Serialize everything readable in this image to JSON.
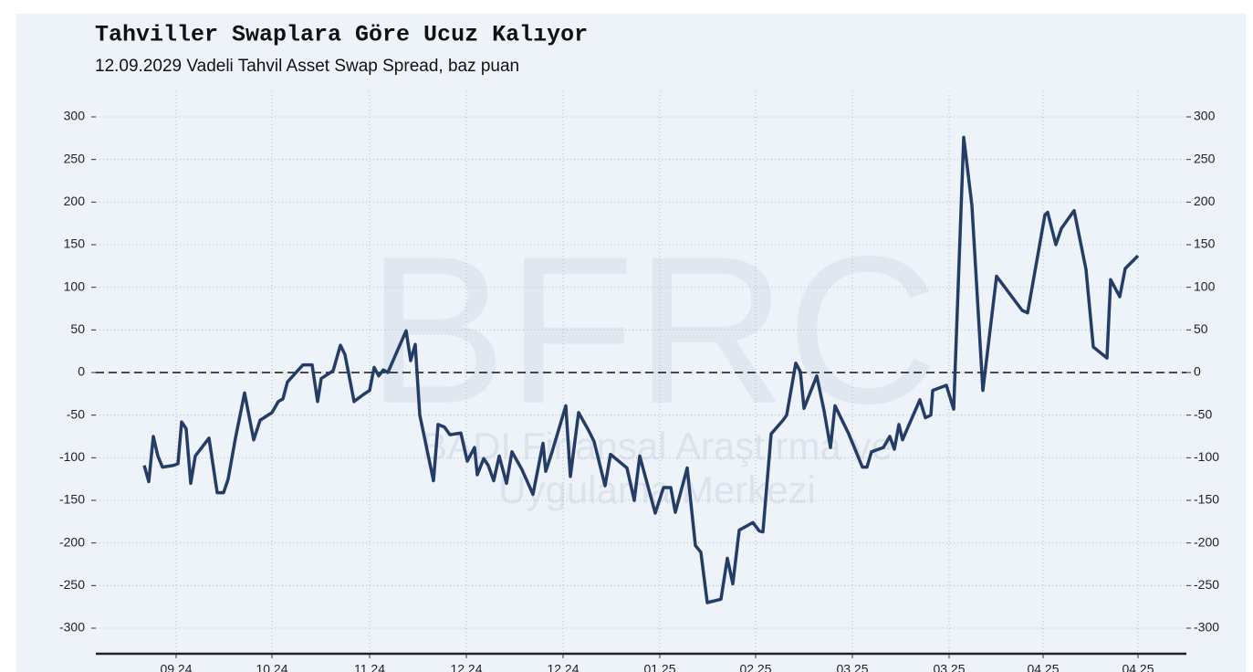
{
  "chart_data": {
    "type": "line",
    "title": "Tahviller Swaplara Göre Ucuz Kalıyor",
    "subtitle": "12.09.2029 Vadeli Tahvil Asset Swap Spread, baz puan",
    "watermark": [
      "BFRC",
      "BADI Finansal Araştırma ve",
      "Uygulama Merkezi"
    ],
    "x": [
      -35,
      -30,
      -25,
      -20,
      -15,
      -3,
      2,
      6,
      11,
      16,
      21,
      36,
      45,
      52,
      57,
      65,
      75,
      85,
      92,
      105,
      112,
      117,
      122,
      139,
      149,
      155,
      159,
      172,
      180,
      185,
      195,
      205,
      212,
      217,
      222,
      227,
      232,
      252,
      257,
      262,
      267,
      282,
      287,
      294,
      300,
      312,
      319,
      327,
      330,
      337,
      342,
      348,
      354,
      362,
      368,
      379,
      391,
      402,
      405,
      412,
      427,
      432,
      441,
      452,
      458,
      470,
      476,
      494,
      502,
      508,
      525,
      534,
      542,
      547,
      560,
      569,
      575,
      582,
      597,
      604,
      610,
      617,
      632,
      639,
      643,
      652,
      665,
      669,
      679,
      684,
      688,
      702,
      710,
      717,
      722,
      737,
      752,
      757,
      762,
      775,
      782,
      787,
      792,
      796,
      802,
      815,
      821,
      827,
      829,
      844,
      852,
      863,
      872,
      884,
      899,
      927,
      933,
      952,
      955,
      964,
      970,
      984,
      997,
      1005,
      1020,
      1024,
      1034,
      1040,
      1054
    ],
    "series": [
      {
        "name": "Asset Swap Spread",
        "color": "#233d66",
        "values": [
          -109,
          -128,
          -75,
          -98,
          -111,
          -109,
          -107,
          -58,
          -66,
          -130,
          -98,
          -77,
          -141,
          -141,
          -125,
          -77,
          -24,
          -79,
          -56,
          -47,
          -34,
          -31,
          -11,
          9,
          9,
          -34,
          -7,
          2,
          32,
          21,
          -34,
          -26,
          -21,
          6,
          -4,
          3,
          0,
          49,
          14,
          33,
          -50,
          -127,
          -61,
          -64,
          -73,
          -71,
          -104,
          -88,
          -120,
          -101,
          -109,
          -127,
          -98,
          -130,
          -93,
          -114,
          -143,
          -83,
          -116,
          -93,
          -39,
          -122,
          -47,
          -68,
          -81,
          -133,
          -96,
          -112,
          -150,
          -98,
          -165,
          -135,
          -135,
          -164,
          -112,
          -203,
          -211,
          -270,
          -266,
          -218,
          -248,
          -185,
          -176,
          -186,
          -187,
          -72,
          -56,
          -50,
          11,
          1,
          -42,
          -4,
          -45,
          -88,
          -39,
          -72,
          -111,
          -111,
          -93,
          -88,
          -75,
          -90,
          -61,
          -79,
          -64,
          -32,
          -53,
          -50,
          -21,
          -15,
          -43,
          276,
          196,
          -21,
          113,
          73,
          70,
          185,
          188,
          150,
          169,
          190,
          121,
          30,
          17,
          109,
          89,
          122,
          137
        ]
      }
    ],
    "xlim": [
      -88,
      1107
    ],
    "xticks": [
      {
        "value": 0,
        "label": "09.24"
      },
      {
        "value": 105,
        "label": "10.24"
      },
      {
        "value": 212,
        "label": "11.24"
      },
      {
        "value": 318,
        "label": "12.24"
      },
      {
        "value": 424,
        "label": "12.24"
      },
      {
        "value": 530,
        "label": "01.25"
      },
      {
        "value": 635,
        "label": "02.25"
      },
      {
        "value": 741,
        "label": "03.25"
      },
      {
        "value": 847,
        "label": "03.25"
      },
      {
        "value": 950,
        "label": "04.25"
      },
      {
        "value": 1054,
        "label": "04.25"
      }
    ],
    "ylim": [
      -330,
      330
    ],
    "yticks": [
      300,
      250,
      200,
      150,
      100,
      50,
      0,
      -50,
      -100,
      -150,
      -200,
      -250,
      -300
    ],
    "reference_line": 0,
    "grid": true,
    "right_axis": true
  }
}
